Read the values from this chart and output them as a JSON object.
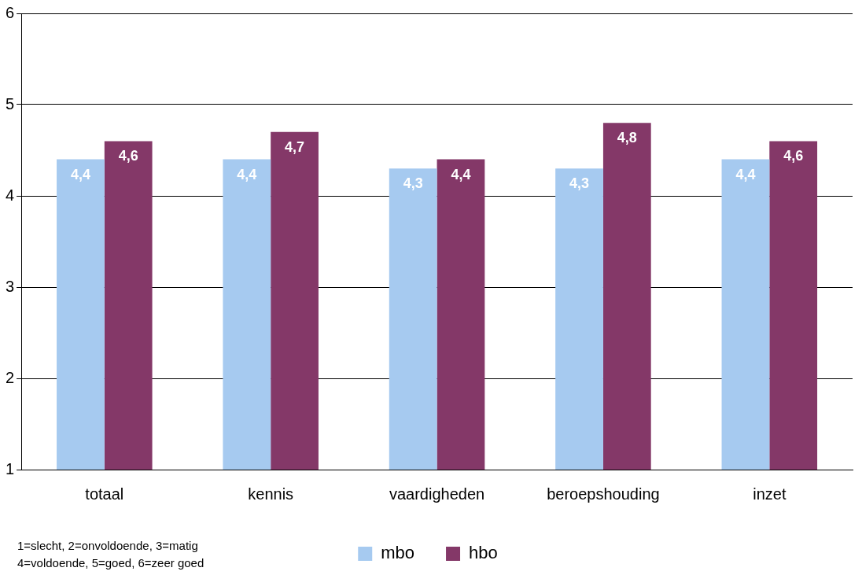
{
  "chart_data": {
    "type": "bar",
    "categories": [
      "totaal",
      "kennis",
      "vaardigheden",
      "beroepshouding",
      "inzet"
    ],
    "series": [
      {
        "name": "mbo",
        "color": "#a6caf0",
        "values": [
          4.4,
          4.4,
          4.3,
          4.3,
          4.4
        ],
        "value_labels": [
          "4,4",
          "4,4",
          "4,3",
          "4,3",
          "4,4"
        ]
      },
      {
        "name": "hbo",
        "color": "#843868",
        "values": [
          4.6,
          4.7,
          4.4,
          4.8,
          4.6
        ],
        "value_labels": [
          "4,6",
          "4,7",
          "4,4",
          "4,8",
          "4,6"
        ]
      }
    ],
    "ylim": [
      1,
      6
    ],
    "yticks": [
      1,
      2,
      3,
      4,
      5,
      6
    ],
    "grid": "y",
    "legend": "bottom",
    "annotations": [
      "1=slecht, 2=onvoldoende, 3=matig",
      "4=voldoende, 5=goed, 6=zeer goed"
    ]
  }
}
